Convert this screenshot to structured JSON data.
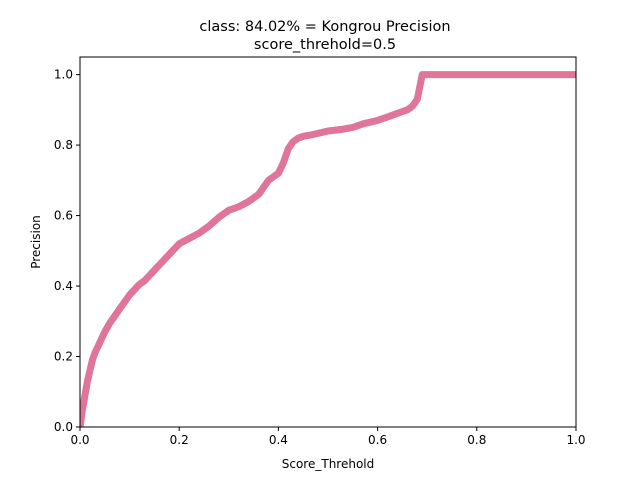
{
  "chart_data": {
    "type": "line",
    "title": "class: 84.02% = Kongrou Precision",
    "subtitle": "score_threhold=0.5",
    "xlabel": "Score_Threhold",
    "ylabel": "Precision",
    "xlim": [
      0.0,
      1.0
    ],
    "ylim": [
      0.0,
      1.05
    ],
    "xticks": [
      "0.0",
      "0.2",
      "0.4",
      "0.6",
      "0.8",
      "1.0"
    ],
    "yticks": [
      "0.0",
      "0.2",
      "0.4",
      "0.6",
      "0.8",
      "1.0"
    ],
    "grid": false,
    "legend": "none",
    "series": [
      {
        "color": "#e07499",
        "x": [
          0.0,
          0.005,
          0.01,
          0.015,
          0.02,
          0.025,
          0.03,
          0.04,
          0.05,
          0.06,
          0.07,
          0.08,
          0.09,
          0.1,
          0.11,
          0.12,
          0.13,
          0.14,
          0.15,
          0.16,
          0.17,
          0.18,
          0.19,
          0.2,
          0.22,
          0.24,
          0.26,
          0.28,
          0.3,
          0.32,
          0.34,
          0.36,
          0.37,
          0.38,
          0.39,
          0.4,
          0.41,
          0.42,
          0.43,
          0.44,
          0.45,
          0.47,
          0.5,
          0.53,
          0.55,
          0.57,
          0.6,
          0.62,
          0.64,
          0.66,
          0.67,
          0.68,
          0.69,
          0.7,
          0.75,
          0.8,
          0.85,
          0.9,
          0.95,
          1.0
        ],
        "y": [
          0.0,
          0.05,
          0.09,
          0.13,
          0.16,
          0.19,
          0.21,
          0.24,
          0.27,
          0.295,
          0.315,
          0.335,
          0.355,
          0.375,
          0.39,
          0.405,
          0.415,
          0.43,
          0.445,
          0.46,
          0.475,
          0.49,
          0.505,
          0.52,
          0.535,
          0.55,
          0.57,
          0.595,
          0.615,
          0.625,
          0.64,
          0.66,
          0.68,
          0.7,
          0.71,
          0.72,
          0.75,
          0.79,
          0.81,
          0.82,
          0.825,
          0.83,
          0.84,
          0.845,
          0.85,
          0.86,
          0.87,
          0.88,
          0.89,
          0.9,
          0.91,
          0.93,
          1.0,
          1.0,
          1.0,
          1.0,
          1.0,
          1.0,
          1.0,
          1.0
        ]
      }
    ]
  }
}
